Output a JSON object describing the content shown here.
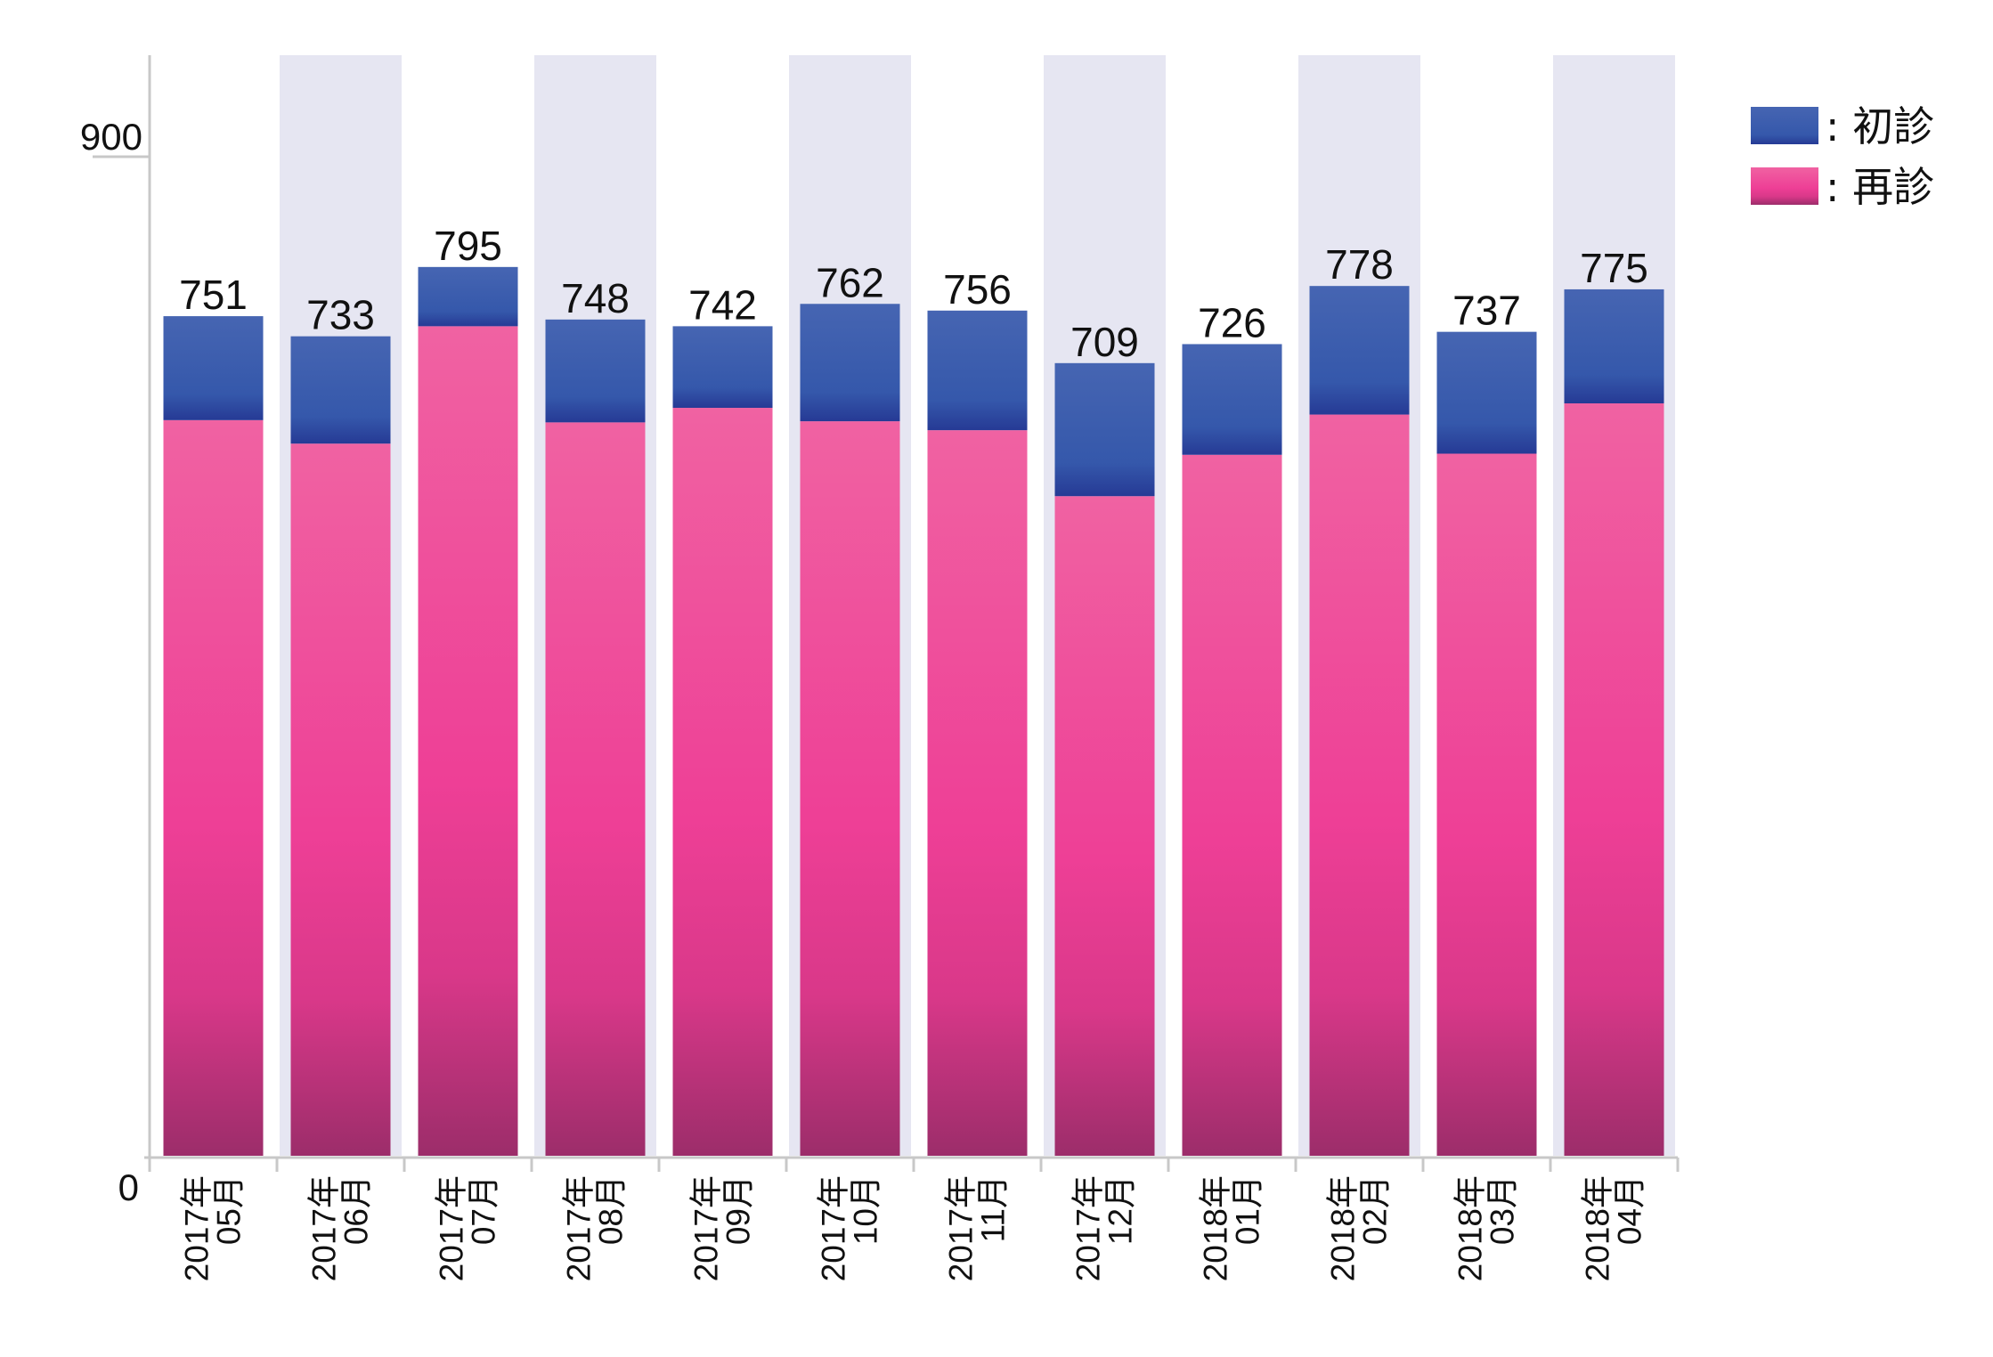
{
  "chart_data": {
    "type": "bar",
    "stacked": true,
    "categories": [
      [
        "2017年",
        "05月"
      ],
      [
        "2017年",
        "06月"
      ],
      [
        "2017年",
        "07月"
      ],
      [
        "2017年",
        "08月"
      ],
      [
        "2017年",
        "09月"
      ],
      [
        "2017年",
        "10月"
      ],
      [
        "2017年",
        "11月"
      ],
      [
        "2017年",
        "12月"
      ],
      [
        "2018年",
        "01月"
      ],
      [
        "2018年",
        "02月"
      ],
      [
        "2018年",
        "03月"
      ],
      [
        "2018年",
        "04月"
      ]
    ],
    "totals": [
      751,
      733,
      795,
      748,
      742,
      762,
      756,
      709,
      726,
      778,
      737,
      775
    ],
    "series": [
      {
        "name": "再診",
        "color_top": "#f05aa0",
        "color_bottom": "#a0306c",
        "values": [
          658,
          637,
          742,
          656,
          669,
          657,
          649,
          590,
          627,
          663,
          628,
          673
        ]
      },
      {
        "name": "初診",
        "color_top": "#4060b0",
        "color_bottom": "#2a3c98",
        "values": [
          93,
          96,
          53,
          92,
          73,
          105,
          107,
          119,
          99,
          115,
          109,
          102
        ]
      }
    ],
    "ylim": [
      0,
      900
    ],
    "yticks": [
      "0",
      "900"
    ],
    "legend": {
      "placement": "top-right",
      "separator": ":"
    },
    "alternate_band_color": "#e6e6f2"
  }
}
